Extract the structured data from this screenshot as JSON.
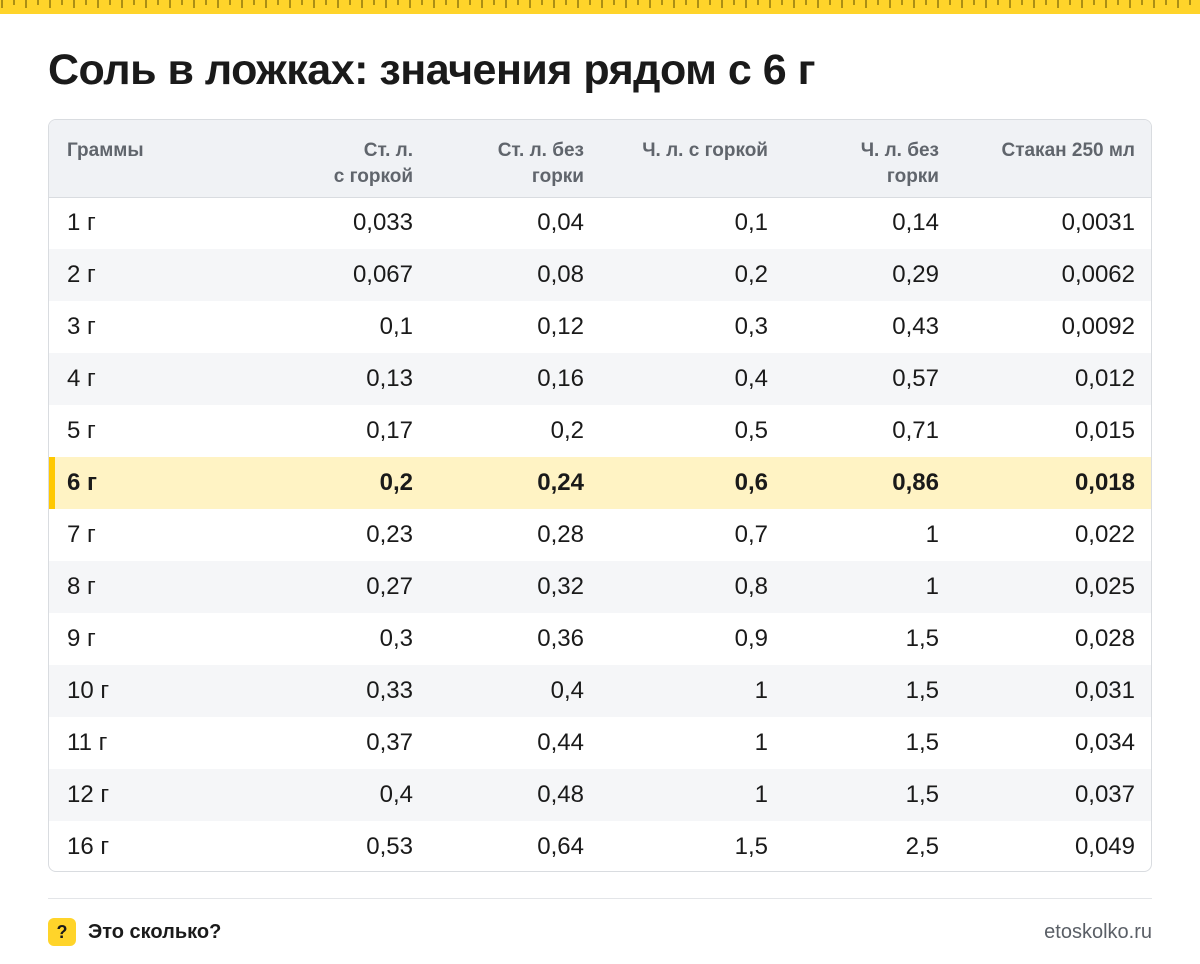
{
  "colors": {
    "accent": "#ffd42a",
    "highlight_row": "#fff3c4",
    "highlight_bar": "#ffc800",
    "header_bg": "#f0f2f5",
    "stripe_bg": "#f5f6f8"
  },
  "title": "Соль в ложках: значения рядом с 6 г",
  "table": {
    "headers": [
      [
        "Граммы"
      ],
      [
        "Ст. л.",
        "с горкой"
      ],
      [
        "Ст. л. без",
        "горки"
      ],
      [
        "Ч. л. с горкой"
      ],
      [
        "Ч. л. без",
        "горки"
      ],
      [
        "Стакан 250 мл"
      ]
    ],
    "highlight_row": 5,
    "rows": [
      [
        "1 г",
        "0,033",
        "0,04",
        "0,1",
        "0,14",
        "0,0031"
      ],
      [
        "2 г",
        "0,067",
        "0,08",
        "0,2",
        "0,29",
        "0,0062"
      ],
      [
        "3 г",
        "0,1",
        "0,12",
        "0,3",
        "0,43",
        "0,0092"
      ],
      [
        "4 г",
        "0,13",
        "0,16",
        "0,4",
        "0,57",
        "0,012"
      ],
      [
        "5 г",
        "0,17",
        "0,2",
        "0,5",
        "0,71",
        "0,015"
      ],
      [
        "6 г",
        "0,2",
        "0,24",
        "0,6",
        "0,86",
        "0,018"
      ],
      [
        "7 г",
        "0,23",
        "0,28",
        "0,7",
        "1",
        "0,022"
      ],
      [
        "8 г",
        "0,27",
        "0,32",
        "0,8",
        "1",
        "0,025"
      ],
      [
        "9 г",
        "0,3",
        "0,36",
        "0,9",
        "1,5",
        "0,028"
      ],
      [
        "10 г",
        "0,33",
        "0,4",
        "1",
        "1,5",
        "0,031"
      ],
      [
        "11 г",
        "0,37",
        "0,44",
        "1",
        "1,5",
        "0,034"
      ],
      [
        "12 г",
        "0,4",
        "0,48",
        "1",
        "1,5",
        "0,037"
      ],
      [
        "16 г",
        "0,53",
        "0,64",
        "1,5",
        "2,5",
        "0,049"
      ]
    ]
  },
  "footer": {
    "logo_mark": "?",
    "logo_text": "Это сколько?",
    "site": "etoskolko.ru"
  }
}
